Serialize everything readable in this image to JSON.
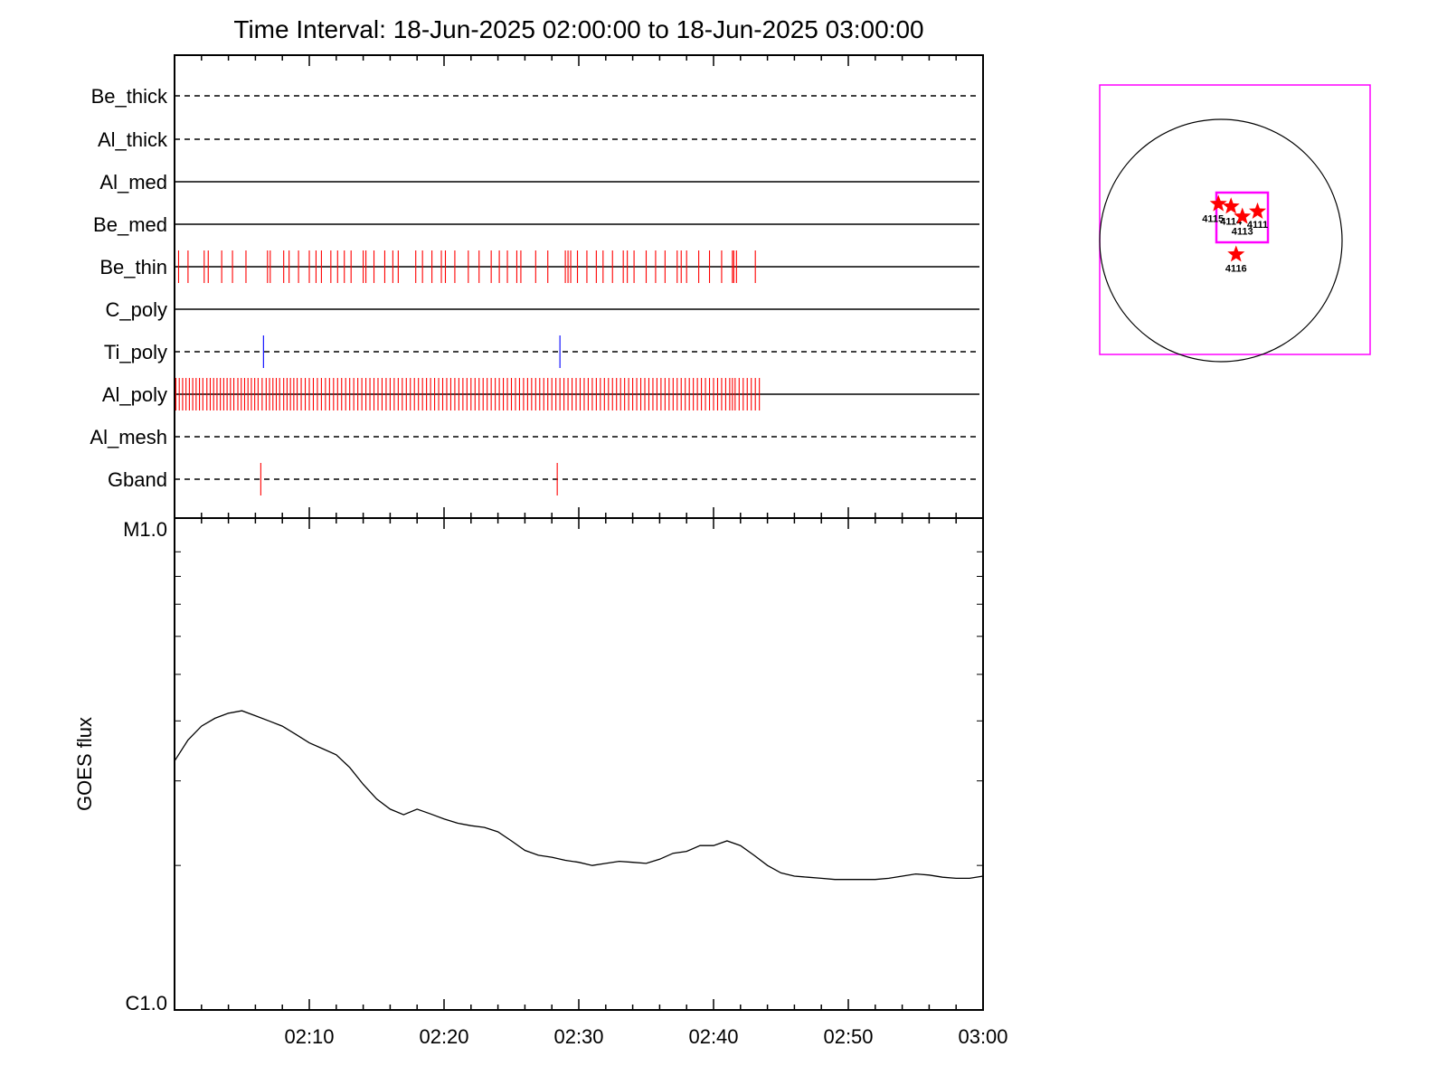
{
  "title": "Time Interval: 18-Jun-2025 02:00:00 to 18-Jun-2025 03:00:00",
  "colors": {
    "event_red": "#ff0000",
    "event_blue": "#0000ff",
    "box_magenta": "#ff00ff",
    "axis": "#000000"
  },
  "chart_data": [
    {
      "type": "timeline",
      "x_unit": "minutes after 02:00",
      "xlim": [
        0,
        60
      ],
      "channels": [
        {
          "name": "Be_thick",
          "line": "dashed",
          "events": []
        },
        {
          "name": "Al_thick",
          "line": "dashed",
          "events": []
        },
        {
          "name": "Al_med",
          "line": "solid",
          "events": []
        },
        {
          "name": "Be_med",
          "line": "solid",
          "events": []
        },
        {
          "name": "Be_thin",
          "line": "solid",
          "line_end": 43.4,
          "color": "#ff0000",
          "events": [
            0.3,
            1.0,
            2.2,
            2.5,
            3.5,
            4.3,
            5.3,
            6.9,
            7.1,
            8.1,
            8.5,
            9.2,
            10.0,
            10.5,
            10.9,
            11.6,
            12.1,
            12.6,
            13.1,
            14.0,
            14.2,
            14.8,
            15.6,
            16.2,
            16.6,
            17.9,
            18.4,
            19.1,
            19.8,
            20.1,
            20.8,
            21.8,
            22.6,
            23.5,
            24.1,
            24.7,
            25.4,
            25.7,
            26.8,
            27.7,
            29.0,
            29.2,
            29.4,
            29.9,
            30.6,
            31.3,
            31.8,
            32.5,
            33.3,
            33.6,
            34.1,
            35.0,
            35.7,
            36.4,
            37.3,
            37.6,
            38.0,
            38.9,
            39.7,
            40.6,
            41.4,
            41.5,
            41.7,
            43.1
          ]
        },
        {
          "name": "C_poly",
          "line": "solid",
          "events": []
        },
        {
          "name": "Ti_poly",
          "line": "dashed",
          "color": "#0000ff",
          "events": [
            6.6,
            28.6
          ]
        },
        {
          "name": "Al_poly",
          "line": "solid",
          "line_end": 43.6,
          "color": "#ff0000",
          "events": [
            0.1,
            0.35,
            0.6,
            0.85,
            1.1,
            1.35,
            1.6,
            1.85,
            2.1,
            2.4,
            2.65,
            2.9,
            3.15,
            3.4,
            3.65,
            3.9,
            4.15,
            4.4,
            4.7,
            4.95,
            5.2,
            5.45,
            5.7,
            5.95,
            6.2,
            6.5,
            6.8,
            7.05,
            7.3,
            7.55,
            7.8,
            8.1,
            8.35,
            8.6,
            8.85,
            9.1,
            9.4,
            9.7,
            10.0,
            10.3,
            10.6,
            10.9,
            11.2,
            11.5,
            11.8,
            12.1,
            12.4,
            12.7,
            13.0,
            13.3,
            13.6,
            13.9,
            14.2,
            14.5,
            14.8,
            15.1,
            15.4,
            15.7,
            16.0,
            16.3,
            16.6,
            16.9,
            17.2,
            17.5,
            17.8,
            18.1,
            18.4,
            18.7,
            19.0,
            19.3,
            19.6,
            19.9,
            20.2,
            20.5,
            20.8,
            21.1,
            21.4,
            21.7,
            22.0,
            22.3,
            22.6,
            22.9,
            23.2,
            23.5,
            23.8,
            24.1,
            24.4,
            24.7,
            25.0,
            25.3,
            25.6,
            25.9,
            26.2,
            26.5,
            26.8,
            27.1,
            27.4,
            27.7,
            28.0,
            28.3,
            28.6,
            28.9,
            29.2,
            29.5,
            29.8,
            30.1,
            30.4,
            30.7,
            31.0,
            31.3,
            31.6,
            31.9,
            32.2,
            32.5,
            32.8,
            33.1,
            33.4,
            33.7,
            34.0,
            34.3,
            34.6,
            34.9,
            35.2,
            35.5,
            35.8,
            36.1,
            36.4,
            36.7,
            37.0,
            37.3,
            37.6,
            37.9,
            38.2,
            38.5,
            38.8,
            39.1,
            39.4,
            39.7,
            40.0,
            40.3,
            40.6,
            40.9,
            41.2,
            41.4,
            41.6,
            41.9,
            42.2,
            42.5,
            42.8,
            43.1,
            43.4
          ]
        },
        {
          "name": "Al_mesh",
          "line": "dashed",
          "events": []
        },
        {
          "name": "Gband",
          "line": "dashed",
          "color": "#ff0000",
          "events": [
            6.4,
            28.4
          ]
        }
      ]
    },
    {
      "type": "line",
      "ylabel": "GOES flux",
      "y_scale": "log",
      "ylim": [
        "C1.0",
        "M1.0"
      ],
      "ytick_labels": [
        "C1.0",
        "M1.0"
      ],
      "xlim": [
        "02:00",
        "03:00"
      ],
      "xtick_labels": [
        "02:10",
        "02:20",
        "02:30",
        "02:40",
        "02:50",
        "03:00"
      ],
      "series": [
        {
          "x": [
            "02:00",
            "02:01",
            "02:02",
            "02:03",
            "02:04",
            "02:05",
            "02:06",
            "02:07",
            "02:08",
            "02:09",
            "02:10",
            "02:11",
            "02:12",
            "02:13",
            "02:14",
            "02:15",
            "02:16",
            "02:17",
            "02:18",
            "02:19",
            "02:20",
            "02:21",
            "02:22",
            "02:23",
            "02:24",
            "02:25",
            "02:26",
            "02:27",
            "02:28",
            "02:29",
            "02:30",
            "02:31",
            "02:32",
            "02:33",
            "02:34",
            "02:35",
            "02:36",
            "02:37",
            "02:38",
            "02:39",
            "02:40",
            "02:41",
            "02:42",
            "02:43",
            "02:44",
            "02:45",
            "02:46",
            "02:47",
            "02:48",
            "02:49",
            "02:50",
            "02:51",
            "02:52",
            "02:53",
            "02:54",
            "02:55",
            "02:56",
            "02:57",
            "02:58",
            "02:59",
            "03:00"
          ],
          "y": [
            3.3e-06,
            3.65e-06,
            3.9e-06,
            4.05e-06,
            4.15e-06,
            4.2e-06,
            4.1e-06,
            4e-06,
            3.9e-06,
            3.75e-06,
            3.6e-06,
            3.5e-06,
            3.4e-06,
            3.2e-06,
            2.95e-06,
            2.75e-06,
            2.62e-06,
            2.55e-06,
            2.62e-06,
            2.56e-06,
            2.5e-06,
            2.45e-06,
            2.42e-06,
            2.4e-06,
            2.35e-06,
            2.25e-06,
            2.15e-06,
            2.1e-06,
            2.08e-06,
            2.05e-06,
            2.03e-06,
            2e-06,
            2.02e-06,
            2.04e-06,
            2.03e-06,
            2.02e-06,
            2.06e-06,
            2.12e-06,
            2.14e-06,
            2.2e-06,
            2.2e-06,
            2.25e-06,
            2.2e-06,
            2.1e-06,
            2e-06,
            1.93e-06,
            1.9e-06,
            1.89e-06,
            1.88e-06,
            1.87e-06,
            1.87e-06,
            1.87e-06,
            1.87e-06,
            1.88e-06,
            1.9e-06,
            1.92e-06,
            1.91e-06,
            1.89e-06,
            1.88e-06,
            1.88e-06,
            1.9e-06
          ]
        }
      ]
    },
    {
      "type": "scatter",
      "title": "",
      "x_unit": "arcsec",
      "y_unit": "arcsec",
      "regions": [
        {
          "label": "4115",
          "x": -20,
          "y": 290
        },
        {
          "label": "4114",
          "x": 80,
          "y": 270
        },
        {
          "label": "4113",
          "x": 170,
          "y": 190
        },
        {
          "label": "4111",
          "x": 290,
          "y": 230
        },
        {
          "label": "4116",
          "x": 120,
          "y": -110
        }
      ]
    }
  ]
}
